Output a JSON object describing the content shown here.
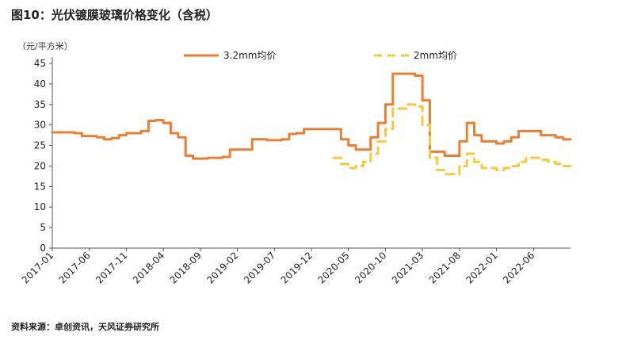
{
  "title": "图10：光伏镀膜玻璃价格变化（含税）",
  "source": "资料来源：卓创资讯，天风证券研究所",
  "chart_data": {
    "type": "line",
    "unit_label": "（元/平方米）",
    "ylim": [
      0,
      45
    ],
    "yticks": [
      0,
      5,
      10,
      15,
      20,
      25,
      30,
      35,
      40,
      45
    ],
    "xlim": [
      "2017-01",
      "2022-11"
    ],
    "xticks": [
      "2017-01",
      "2017-06",
      "2017-11",
      "2018-04",
      "2018-09",
      "2019-02",
      "2019-07",
      "2019-12",
      "2020-05",
      "2020-10",
      "2021-03",
      "2021-08",
      "2022-01",
      "2022-06"
    ],
    "grid": false,
    "legend_position": "top",
    "series": [
      {
        "name": "3.2mm均价",
        "color": "#ed7d31",
        "dash": "solid",
        "points": [
          [
            "2017-01",
            28.2
          ],
          [
            "2017-04",
            28.0
          ],
          [
            "2017-05",
            27.3
          ],
          [
            "2017-07",
            27.0
          ],
          [
            "2017-08",
            26.5
          ],
          [
            "2017-09",
            26.8
          ],
          [
            "2017-10",
            27.5
          ],
          [
            "2017-11",
            28.0
          ],
          [
            "2018-01",
            28.5
          ],
          [
            "2018-02",
            31.0
          ],
          [
            "2018-03",
            31.2
          ],
          [
            "2018-04",
            30.5
          ],
          [
            "2018-05",
            28.0
          ],
          [
            "2018-06",
            27.0
          ],
          [
            "2018-07",
            22.5
          ],
          [
            "2018-08",
            21.8
          ],
          [
            "2018-10",
            22.0
          ],
          [
            "2018-12",
            22.2
          ],
          [
            "2019-01",
            24.0
          ],
          [
            "2019-03",
            24.0
          ],
          [
            "2019-04",
            26.5
          ],
          [
            "2019-06",
            26.3
          ],
          [
            "2019-08",
            26.5
          ],
          [
            "2019-09",
            27.8
          ],
          [
            "2019-10",
            28.0
          ],
          [
            "2019-11",
            29.0
          ],
          [
            "2020-02",
            29.0
          ],
          [
            "2020-03",
            29.0
          ],
          [
            "2020-04",
            26.5
          ],
          [
            "2020-05",
            25.0
          ],
          [
            "2020-06",
            24.0
          ],
          [
            "2020-07",
            24.0
          ],
          [
            "2020-08",
            27.0
          ],
          [
            "2020-09",
            30.5
          ],
          [
            "2020-10",
            35.0
          ],
          [
            "2020-11",
            42.5
          ],
          [
            "2021-01",
            42.5
          ],
          [
            "2021-02",
            42.0
          ],
          [
            "2021-03",
            36.0
          ],
          [
            "2021-04",
            23.5
          ],
          [
            "2021-06",
            22.5
          ],
          [
            "2021-07",
            22.5
          ],
          [
            "2021-08",
            26.0
          ],
          [
            "2021-09",
            30.5
          ],
          [
            "2021-10",
            27.5
          ],
          [
            "2021-11",
            26.0
          ],
          [
            "2022-01",
            25.5
          ],
          [
            "2022-02",
            26.0
          ],
          [
            "2022-03",
            27.0
          ],
          [
            "2022-04",
            28.5
          ],
          [
            "2022-06",
            28.5
          ],
          [
            "2022-07",
            27.5
          ],
          [
            "2022-09",
            27.0
          ],
          [
            "2022-10",
            26.5
          ],
          [
            "2022-11",
            26.5
          ]
        ]
      },
      {
        "name": "2mm均价",
        "color": "#f7c93b",
        "dash": "dashed",
        "points": [
          [
            "2020-03",
            22.0
          ],
          [
            "2020-04",
            20.5
          ],
          [
            "2020-05",
            19.5
          ],
          [
            "2020-06",
            20.0
          ],
          [
            "2020-07",
            21.0
          ],
          [
            "2020-08",
            23.0
          ],
          [
            "2020-09",
            26.0
          ],
          [
            "2020-10",
            29.0
          ],
          [
            "2020-11",
            34.0
          ],
          [
            "2021-01",
            35.0
          ],
          [
            "2021-02",
            34.5
          ],
          [
            "2021-03",
            30.0
          ],
          [
            "2021-04",
            22.0
          ],
          [
            "2021-05",
            19.0
          ],
          [
            "2021-06",
            18.0
          ],
          [
            "2021-07",
            18.0
          ],
          [
            "2021-08",
            20.0
          ],
          [
            "2021-09",
            23.0
          ],
          [
            "2021-10",
            21.0
          ],
          [
            "2021-11",
            19.5
          ],
          [
            "2022-01",
            19.0
          ],
          [
            "2022-02",
            19.5
          ],
          [
            "2022-03",
            20.0
          ],
          [
            "2022-04",
            21.0
          ],
          [
            "2022-05",
            22.0
          ],
          [
            "2022-06",
            22.0
          ],
          [
            "2022-07",
            21.5
          ],
          [
            "2022-08",
            21.0
          ],
          [
            "2022-09",
            20.5
          ],
          [
            "2022-10",
            20.0
          ],
          [
            "2022-11",
            20.0
          ]
        ]
      }
    ]
  }
}
